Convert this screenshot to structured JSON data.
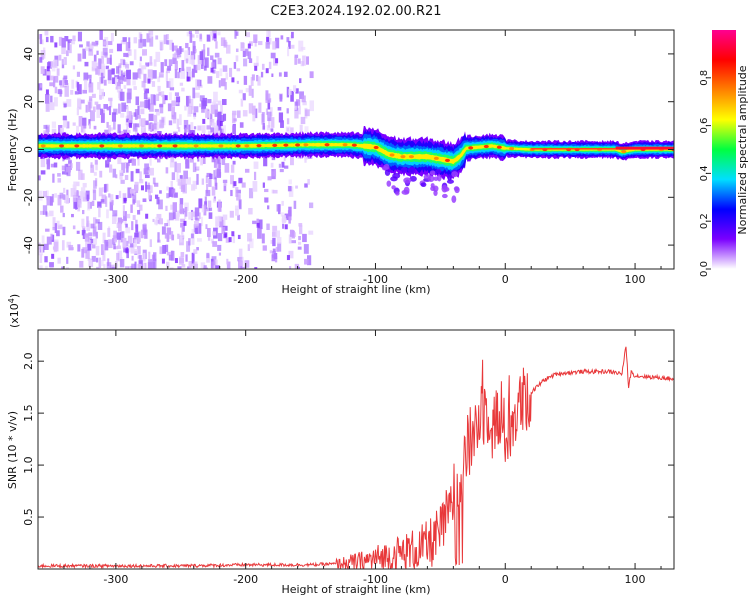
{
  "title": "C2E3.2024.192.02.00.R21",
  "chart_data": [
    {
      "type": "heatmap",
      "name": "spectrogram",
      "xlabel": "Height of straight line (km)",
      "ylabel": "Frequency (Hz)",
      "xlim": [
        -360,
        130
      ],
      "ylim": [
        -50,
        50
      ],
      "x_ticks": [
        -300,
        -200,
        -100,
        0,
        100
      ],
      "y_ticks": [
        -40,
        -20,
        0,
        20,
        40
      ],
      "x_tick_labels": [
        "-300",
        "-200",
        "-100",
        "0",
        "100"
      ],
      "y_tick_labels": [
        "-40",
        "-20",
        "0",
        "20",
        "40"
      ],
      "ridge": {
        "x": [
          -360,
          -300,
          -250,
          -200,
          -150,
          -120,
          -100,
          -90,
          -80,
          -70,
          -60,
          -50,
          -40,
          -35,
          -30,
          -20,
          -10,
          0,
          20,
          50,
          85,
          90,
          100,
          130
        ],
        "freq": [
          1.5,
          1.5,
          1.5,
          1.5,
          2,
          2,
          1,
          -2,
          -3,
          -3,
          -3,
          -4,
          -5,
          -3,
          0.5,
          1,
          1.5,
          0.5,
          0,
          0,
          0,
          -1,
          0,
          0
        ]
      },
      "scatter_region": [
        -360,
        -150
      ],
      "colorbar": {
        "label": "Normalized spectral amplitude",
        "range": [
          0,
          1
        ],
        "ticks": [
          0,
          0.2,
          0.4,
          0.6,
          0.8
        ],
        "tick_labels": [
          "0.0",
          "0.2",
          "0.4",
          "0.6",
          "0.8"
        ],
        "colors": [
          "#ffffff",
          "#7a00ff",
          "#0000ff",
          "#00dfff",
          "#00ff40",
          "#ffff00",
          "#ff8000",
          "#ff0000",
          "#ff0090"
        ]
      }
    },
    {
      "type": "line",
      "name": "snr",
      "xlabel": "Height of straight line (km)",
      "ylabel": "SNR (10 * v/v)",
      "scale_label": "(x10",
      "scale_exp": "4",
      "scale_close": ")",
      "xlim": [
        -360,
        130
      ],
      "ylim": [
        0,
        2.3
      ],
      "x_ticks": [
        -300,
        -200,
        -100,
        0,
        100
      ],
      "y_ticks": [
        0.5,
        1.0,
        1.5,
        2.0
      ],
      "x_tick_labels": [
        "-300",
        "-200",
        "-100",
        "0",
        "100"
      ],
      "y_tick_labels": [
        "0.5",
        "1.0",
        "1.5",
        "2.0"
      ],
      "color": "#e8383a",
      "series": [
        {
          "name": "SNR",
          "x": [
            -360,
            -300,
            -250,
            -200,
            -150,
            -130,
            -110,
            -100,
            -90,
            -80,
            -70,
            -60,
            -55,
            -50,
            -45,
            -40,
            -35,
            -30,
            -25,
            -20,
            -15,
            -10,
            -5,
            0,
            5,
            10,
            20,
            30,
            40,
            60,
            80,
            90,
            93,
            95,
            97,
            100,
            110,
            120,
            130
          ],
          "y": [
            0.03,
            0.03,
            0.03,
            0.04,
            0.04,
            0.05,
            0.07,
            0.1,
            0.12,
            0.15,
            0.18,
            0.22,
            0.28,
            0.35,
            0.5,
            0.7,
            0.9,
            1.1,
            1.3,
            1.45,
            1.55,
            1.5,
            1.4,
            1.3,
            1.4,
            1.55,
            1.7,
            1.82,
            1.88,
            1.9,
            1.9,
            1.88,
            2.15,
            1.75,
            1.9,
            1.86,
            1.85,
            1.84,
            1.83
          ]
        }
      ]
    }
  ]
}
